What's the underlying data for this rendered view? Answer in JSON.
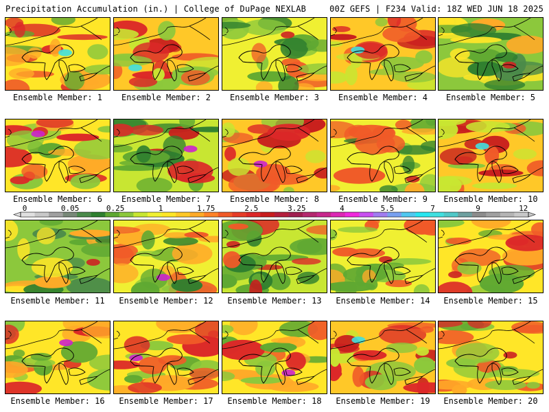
{
  "header": {
    "title_left": "Precipitation Accumulation (in.) | College of DuPage NEXLAB",
    "title_right": "00Z GEFS | F234 Valid: 18Z WED JUN 18 2025"
  },
  "panels": [
    {
      "label": "Ensemble Member: 1",
      "dominant": "yellow-red",
      "max_color": "#40e0e0"
    },
    {
      "label": "Ensemble Member: 2",
      "dominant": "red-yellow",
      "max_color": "#40e0e0"
    },
    {
      "label": "Ensemble Member: 3",
      "dominant": "yellow-green",
      "max_color": "#cc2222"
    },
    {
      "label": "Ensemble Member: 4",
      "dominant": "red-yellow",
      "max_color": "#40e0e0"
    },
    {
      "label": "Ensemble Member: 5",
      "dominant": "green-yellow",
      "max_color": "#cc2222"
    },
    {
      "label": "Ensemble Member: 6",
      "dominant": "yellow-red",
      "max_color": "#cc22cc"
    },
    {
      "label": "Ensemble Member: 7",
      "dominant": "green-red",
      "max_color": "#cc22cc"
    },
    {
      "label": "Ensemble Member: 8",
      "dominant": "red-yellow",
      "max_color": "#cc22cc"
    },
    {
      "label": "Ensemble Member: 9",
      "dominant": "yellow-green",
      "max_color": "#cc2222"
    },
    {
      "label": "Ensemble Member: 10",
      "dominant": "red-yellow",
      "max_color": "#40e0e0"
    },
    {
      "label": "Ensemble Member: 11",
      "dominant": "green-yellow",
      "max_color": "#cc2222"
    },
    {
      "label": "Ensemble Member: 12",
      "dominant": "yellow-green",
      "max_color": "#cc22cc"
    },
    {
      "label": "Ensemble Member: 13",
      "dominant": "green-red",
      "max_color": "#cc2222"
    },
    {
      "label": "Ensemble Member: 14",
      "dominant": "yellow-green",
      "max_color": "#cc2222"
    },
    {
      "label": "Ensemble Member: 15",
      "dominant": "yellow-red",
      "max_color": "#cc2222"
    },
    {
      "label": "Ensemble Member: 16",
      "dominant": "yellow-red",
      "max_color": "#cc22cc"
    },
    {
      "label": "Ensemble Member: 17",
      "dominant": "yellow-red",
      "max_color": "#cc22cc"
    },
    {
      "label": "Ensemble Member: 18",
      "dominant": "yellow-red",
      "max_color": "#cc22cc"
    },
    {
      "label": "Ensemble Member: 19",
      "dominant": "red-yellow",
      "max_color": "#40e0e0"
    },
    {
      "label": "Ensemble Member: 20",
      "dominant": "yellow-red",
      "max_color": "#cc2222"
    }
  ],
  "legend": {
    "tick_labels": [
      "0",
      "0.05",
      "0.25",
      "1",
      "1.75",
      "2.5",
      "3.25",
      "4",
      "5.5",
      "7",
      "9",
      "12"
    ],
    "colors": [
      "#e0e0e0",
      "#c8c8c8",
      "#a0a0a0",
      "#788878",
      "#4a8a4a",
      "#2f7f2f",
      "#5fa832",
      "#8cc83c",
      "#c8e632",
      "#f0f032",
      "#ffe628",
      "#ffc828",
      "#ffaa28",
      "#ff8228",
      "#f05a28",
      "#e63c28",
      "#dc2828",
      "#c81e1e",
      "#b41e3c",
      "#a01e50",
      "#b4286e",
      "#c8288c",
      "#dc28b4",
      "#f028dc",
      "#c850f0",
      "#a07cf0",
      "#78a0f0",
      "#50c8f0",
      "#28e6f0",
      "#40e0e0",
      "#50c8c8",
      "#6ea0a0",
      "#8c8c8c",
      "#a0a0a0",
      "#b4b4b4",
      "#c8c8c8"
    ]
  }
}
